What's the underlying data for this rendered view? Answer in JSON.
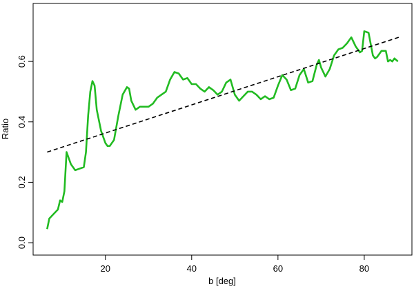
{
  "chart_data": {
    "type": "line",
    "xlabel": "b [deg]",
    "ylabel": "Ratio",
    "xlim": [
      3.25,
      91.05
    ],
    "ylim": [
      -0.041,
      0.792
    ],
    "xticks": [
      20,
      40,
      60,
      80
    ],
    "yticks": [
      {
        "value": 0,
        "label": "0.0"
      },
      0.2,
      0.4,
      0.6
    ],
    "series": [
      {
        "color": "#22bb22",
        "dash": false,
        "x": [
          6.5,
          7,
          8,
          9,
          9.5,
          10,
          10.5,
          11,
          12,
          13,
          14,
          15,
          15.5,
          16,
          16.5,
          17,
          17.5,
          18,
          19,
          20,
          20.5,
          21,
          22,
          23,
          24,
          25,
          25.5,
          26,
          27,
          28,
          29,
          30,
          31,
          32,
          33,
          34,
          35,
          36,
          37,
          38,
          39,
          40,
          41,
          42,
          43,
          44,
          45,
          46,
          47,
          48,
          49,
          50,
          51,
          52,
          53,
          54,
          55,
          56,
          57,
          58,
          59,
          60,
          61,
          62,
          63,
          64,
          65,
          66,
          67,
          68,
          69,
          69.5,
          70,
          71,
          72,
          73,
          74,
          75,
          76,
          77,
          78,
          79,
          79.5,
          80,
          81,
          82,
          82.5,
          83,
          84,
          85,
          85.5,
          86,
          86.5,
          87,
          87.8
        ],
        "values": [
          0.045,
          0.08,
          0.095,
          0.11,
          0.14,
          0.135,
          0.17,
          0.3,
          0.26,
          0.24,
          0.245,
          0.25,
          0.3,
          0.42,
          0.5,
          0.535,
          0.52,
          0.44,
          0.37,
          0.33,
          0.32,
          0.32,
          0.34,
          0.42,
          0.49,
          0.515,
          0.51,
          0.47,
          0.44,
          0.45,
          0.45,
          0.45,
          0.46,
          0.48,
          0.49,
          0.5,
          0.54,
          0.565,
          0.56,
          0.54,
          0.545,
          0.525,
          0.525,
          0.51,
          0.5,
          0.515,
          0.505,
          0.49,
          0.5,
          0.53,
          0.54,
          0.49,
          0.47,
          0.485,
          0.5,
          0.5,
          0.49,
          0.475,
          0.485,
          0.475,
          0.48,
          0.52,
          0.555,
          0.54,
          0.505,
          0.51,
          0.555,
          0.575,
          0.53,
          0.535,
          0.59,
          0.605,
          0.58,
          0.55,
          0.575,
          0.62,
          0.64,
          0.645,
          0.66,
          0.68,
          0.65,
          0.63,
          0.635,
          0.7,
          0.695,
          0.62,
          0.61,
          0.615,
          0.635,
          0.635,
          0.6,
          0.605,
          0.6,
          0.61,
          0.6
        ]
      },
      {
        "color": "#000000",
        "dash": true,
        "x": [
          6.5,
          88
        ],
        "values": [
          0.3,
          0.68
        ]
      }
    ]
  }
}
